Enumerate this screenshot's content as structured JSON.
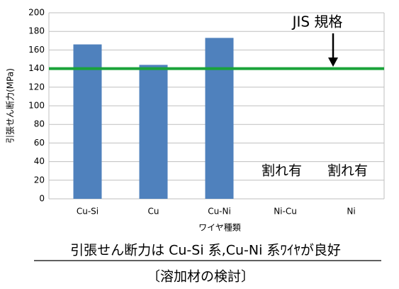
{
  "chart_data": {
    "type": "bar",
    "categories": [
      "Cu-Si",
      "Cu",
      "Cu-Ni",
      "Ni-Cu",
      "Ni"
    ],
    "values": [
      166,
      144,
      173,
      null,
      null
    ],
    "color": "#4f81bd",
    "ylim": [
      0,
      200
    ],
    "yticks": [
      0,
      20,
      40,
      60,
      80,
      100,
      120,
      140,
      160,
      180,
      200
    ],
    "grid": true,
    "y_label": "引張せん断力(MPa)",
    "x_label": "ワイヤ種類",
    "reference_line": {
      "value": 140,
      "color": "#1aa33a",
      "label": "JIS 規格"
    },
    "annotations": [
      "割れ有",
      "割れ有"
    ],
    "caption": "引張せん断力は Cu-Si 系,Cu-Ni 系ﾜｲﾔが良好",
    "subcaption": "〔溶加材の検討〕"
  }
}
